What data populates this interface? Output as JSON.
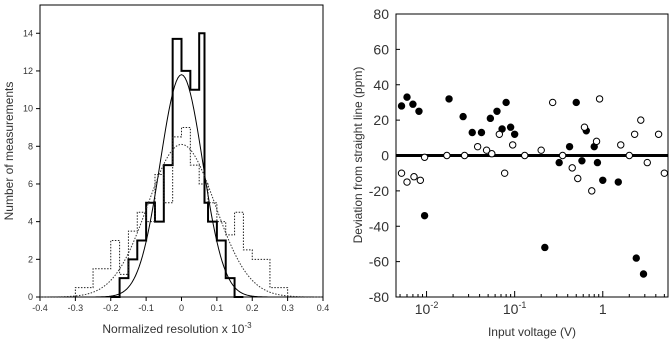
{
  "chart_data": [
    {
      "type": "histogram",
      "xlabel": "Normalized resolution x 10",
      "xlabel_exponent": "-3",
      "ylabel": "Number of measurements",
      "xlim": [
        -0.4,
        0.4
      ],
      "ylim": [
        0,
        15.5
      ],
      "x_ticks": [
        "-0.4",
        "-0.3",
        "-0.2",
        "-0.1",
        "0",
        "0.1",
        "0.2",
        "0.3",
        "0.4"
      ],
      "y_ticks": [
        "0",
        "2",
        "4",
        "6",
        "8",
        "10",
        "12",
        "14"
      ],
      "series": [
        {
          "style": "solid-step",
          "bins": [
            [
              -0.2,
              -0.175,
              0
            ],
            [
              -0.175,
              -0.15,
              1
            ],
            [
              -0.15,
              -0.125,
              2
            ],
            [
              -0.125,
              -0.1,
              3
            ],
            [
              -0.1,
              -0.075,
              5
            ],
            [
              -0.075,
              -0.05,
              4
            ],
            [
              -0.05,
              -0.025,
              7
            ],
            [
              -0.025,
              0.0,
              13.7
            ],
            [
              0.0,
              0.025,
              12
            ],
            [
              0.025,
              0.05,
              11
            ],
            [
              0.05,
              0.065,
              14
            ],
            [
              0.065,
              0.075,
              5
            ],
            [
              0.075,
              0.1,
              4
            ],
            [
              0.1,
              0.125,
              3
            ],
            [
              0.125,
              0.15,
              1
            ],
            [
              0.15,
              0.175,
              0
            ]
          ]
        },
        {
          "style": "dotted-step",
          "bins": [
            [
              -0.3,
              -0.25,
              0.5
            ],
            [
              -0.25,
              -0.2,
              1.5
            ],
            [
              -0.2,
              -0.175,
              3
            ],
            [
              -0.175,
              -0.15,
              1.2
            ],
            [
              -0.15,
              -0.125,
              3.5
            ],
            [
              -0.125,
              -0.1,
              4.5
            ],
            [
              -0.1,
              -0.075,
              4
            ],
            [
              -0.075,
              -0.05,
              6.5
            ],
            [
              -0.05,
              -0.025,
              5
            ],
            [
              -0.025,
              0.0,
              8.5
            ],
            [
              0.0,
              0.025,
              9
            ],
            [
              0.025,
              0.05,
              7
            ],
            [
              0.05,
              0.075,
              6
            ],
            [
              0.075,
              0.1,
              5
            ],
            [
              0.1,
              0.125,
              4
            ],
            [
              0.125,
              0.15,
              3.3
            ],
            [
              0.15,
              0.175,
              4.5
            ],
            [
              0.175,
              0.2,
              2.5
            ],
            [
              0.2,
              0.25,
              2
            ],
            [
              0.25,
              0.3,
              0.5
            ]
          ]
        },
        {
          "style": "solid-curve",
          "peak": 11.8,
          "sigma": 0.06
        },
        {
          "style": "dotted-curve",
          "peak": 8.1,
          "sigma": 0.095
        }
      ]
    },
    {
      "type": "scatter",
      "xlabel": "Input voltage (V)",
      "ylabel": "Deviation from straight line (ppm)",
      "x_scale": "log",
      "xlim": [
        0.0045,
        5.5
      ],
      "ylim": [
        -80,
        80
      ],
      "x_ticks": [
        {
          "value": 0.01,
          "base": "10",
          "exp": "-2"
        },
        {
          "value": 0.1,
          "base": "10",
          "exp": "-1"
        },
        {
          "value": 1,
          "base": "1",
          "exp": ""
        }
      ],
      "y_ticks": [
        "-80",
        "-60",
        "-40",
        "-20",
        "0",
        "20",
        "40",
        "60",
        "80"
      ],
      "reference_line_y": 0,
      "series": [
        {
          "marker": "filled-circle",
          "points": [
            [
              0.0052,
              28
            ],
            [
              0.006,
              33
            ],
            [
              0.007,
              29
            ],
            [
              0.0082,
              25
            ],
            [
              0.0095,
              -34
            ],
            [
              0.018,
              32
            ],
            [
              0.026,
              22
            ],
            [
              0.033,
              13
            ],
            [
              0.042,
              13
            ],
            [
              0.053,
              21
            ],
            [
              0.063,
              25
            ],
            [
              0.072,
              15
            ],
            [
              0.08,
              30
            ],
            [
              0.09,
              16
            ],
            [
              0.1,
              12
            ],
            [
              0.22,
              -52
            ],
            [
              0.32,
              -4
            ],
            [
              0.42,
              5
            ],
            [
              0.5,
              30
            ],
            [
              0.58,
              -3
            ],
            [
              0.65,
              14
            ],
            [
              0.8,
              5
            ],
            [
              0.87,
              -4
            ],
            [
              1.0,
              -14
            ],
            [
              1.5,
              -15
            ],
            [
              2.4,
              -58
            ],
            [
              2.9,
              -67
            ]
          ]
        },
        {
          "marker": "open-circle",
          "points": [
            [
              0.0052,
              -10
            ],
            [
              0.006,
              -15
            ],
            [
              0.0072,
              -12
            ],
            [
              0.0085,
              -14
            ],
            [
              0.0095,
              -1
            ],
            [
              0.017,
              0
            ],
            [
              0.027,
              0
            ],
            [
              0.038,
              5
            ],
            [
              0.048,
              3
            ],
            [
              0.055,
              1
            ],
            [
              0.067,
              12
            ],
            [
              0.077,
              -10
            ],
            [
              0.095,
              6
            ],
            [
              0.13,
              0
            ],
            [
              0.2,
              3
            ],
            [
              0.27,
              30
            ],
            [
              0.35,
              0
            ],
            [
              0.45,
              -7
            ],
            [
              0.52,
              -13
            ],
            [
              0.62,
              16
            ],
            [
              0.75,
              -20
            ],
            [
              0.85,
              8
            ],
            [
              0.92,
              32
            ],
            [
              1.6,
              6
            ],
            [
              2.0,
              0
            ],
            [
              2.3,
              12
            ],
            [
              2.7,
              20
            ],
            [
              3.2,
              -4
            ],
            [
              4.3,
              12
            ],
            [
              5.0,
              -10
            ]
          ]
        }
      ]
    }
  ]
}
